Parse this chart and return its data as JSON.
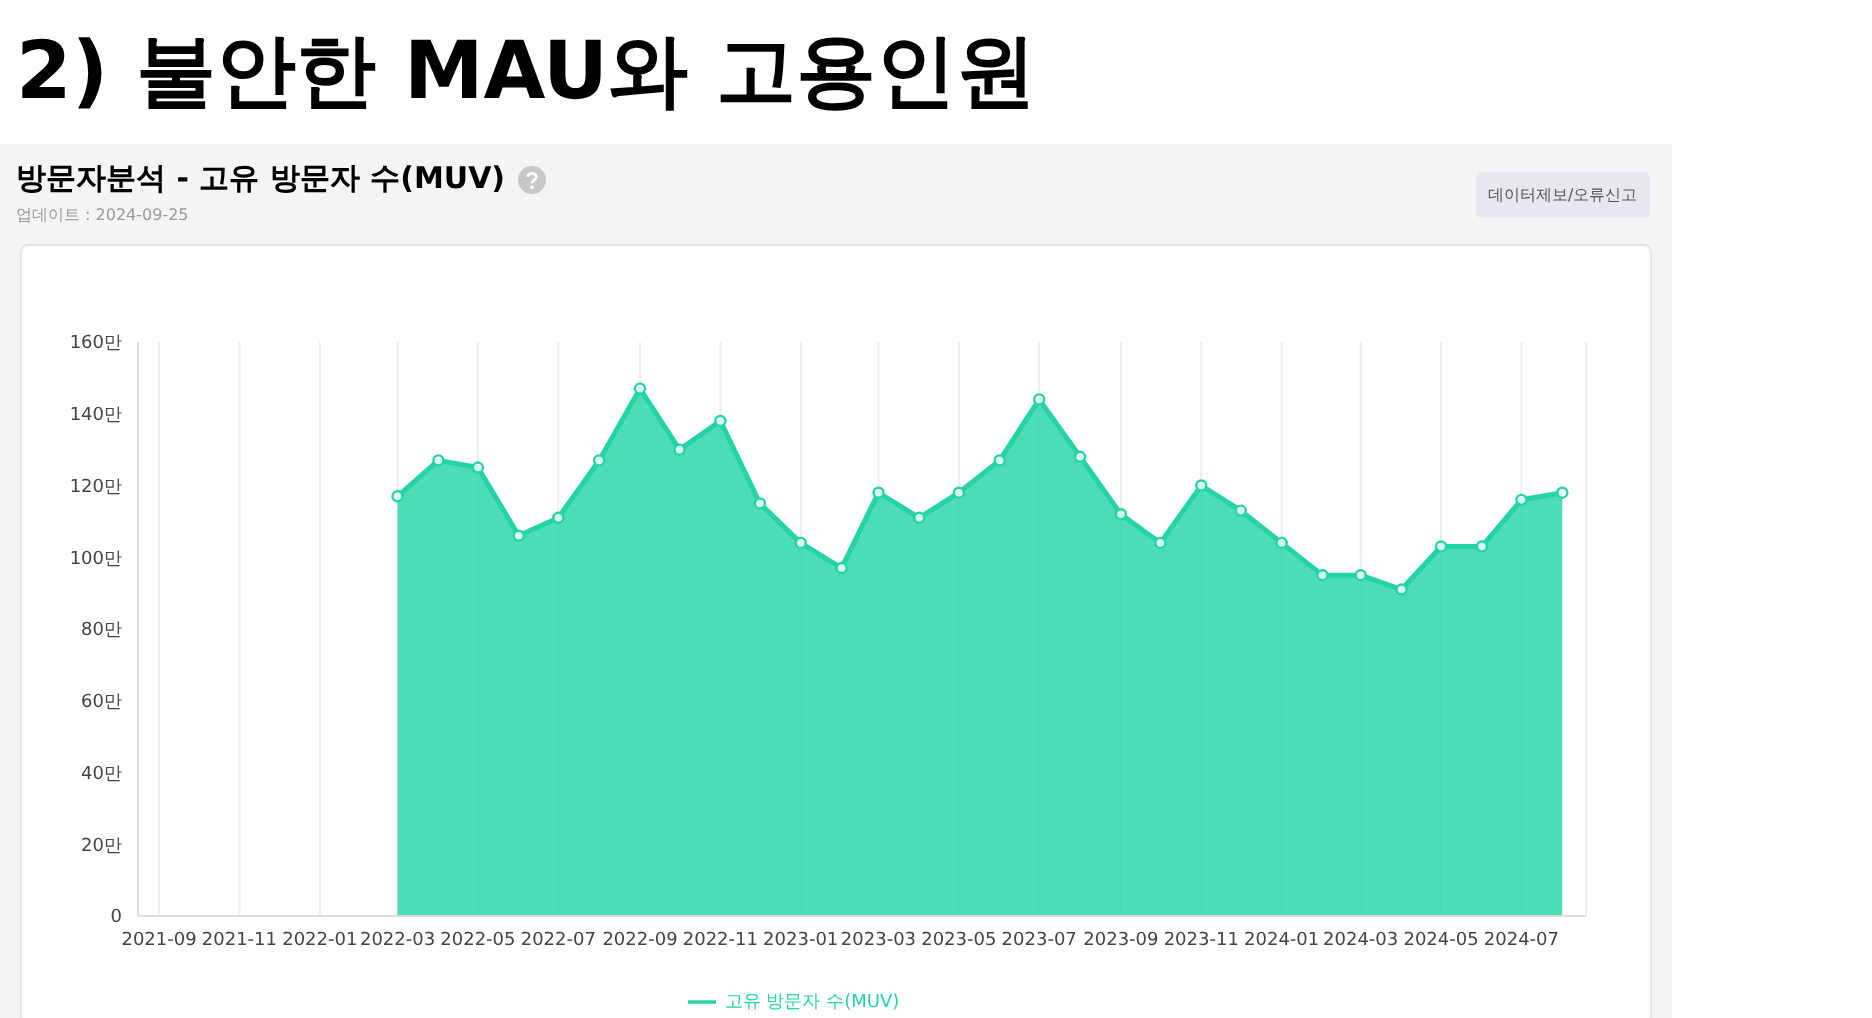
{
  "chart_data": {
    "type": "area",
    "title": "2) 불안한 MAU와 고용인원",
    "subtitle": "방문자분석 - 고유 방문자 수(MUV)",
    "annotations": [
      "업데이트 : 2024-09-25",
      "데이터제보/오류신고"
    ],
    "x": [
      "2022-03",
      "2022-04",
      "2022-05",
      "2022-06",
      "2022-07",
      "2022-08",
      "2022-09",
      "2022-10",
      "2022-11",
      "2022-12",
      "2023-01",
      "2023-02",
      "2023-03",
      "2023-04",
      "2023-05",
      "2023-06",
      "2023-07",
      "2023-08",
      "2023-09",
      "2023-10",
      "2023-11",
      "2023-12",
      "2024-01",
      "2024-02",
      "2024-03",
      "2024-04",
      "2024-05",
      "2024-06",
      "2024-07",
      "2024-08"
    ],
    "series": [
      {
        "name": "고유 방문자 수(MUV)",
        "color": "#25d4a6",
        "values": [
          117,
          127,
          125,
          106,
          111,
          127,
          147,
          130,
          138,
          115,
          104,
          97,
          118,
          111,
          118,
          127,
          144,
          128,
          112,
          104,
          120,
          113,
          104,
          95,
          95,
          91,
          103,
          103,
          116,
          118
        ]
      }
    ],
    "xlim": [
      "2021-08-16",
      "2024-08-19"
    ],
    "xticks": [
      "2021-09",
      "2021-11",
      "2022-01",
      "2022-03",
      "2022-05",
      "2022-07",
      "2022-09",
      "2022-11",
      "2023-01",
      "2023-03",
      "2023-05",
      "2023-07",
      "2023-09",
      "2023-11",
      "2024-01",
      "2024-03",
      "2024-05",
      "2024-07"
    ],
    "ylim": [
      0,
      160
    ],
    "yticks": [
      {
        "value": 0,
        "label": "0"
      },
      {
        "value": 20,
        "label": "20만"
      },
      {
        "value": 40,
        "label": "40만"
      },
      {
        "value": 60,
        "label": "60만"
      },
      {
        "value": 80,
        "label": "80만"
      },
      {
        "value": 100,
        "label": "100만"
      },
      {
        "value": 120,
        "label": "120만"
      },
      {
        "value": 140,
        "label": "140만"
      },
      {
        "value": 160,
        "label": "160만"
      }
    ],
    "grid": "x",
    "legend": "bottom",
    "marker": "circle",
    "line_style": "solid"
  }
}
